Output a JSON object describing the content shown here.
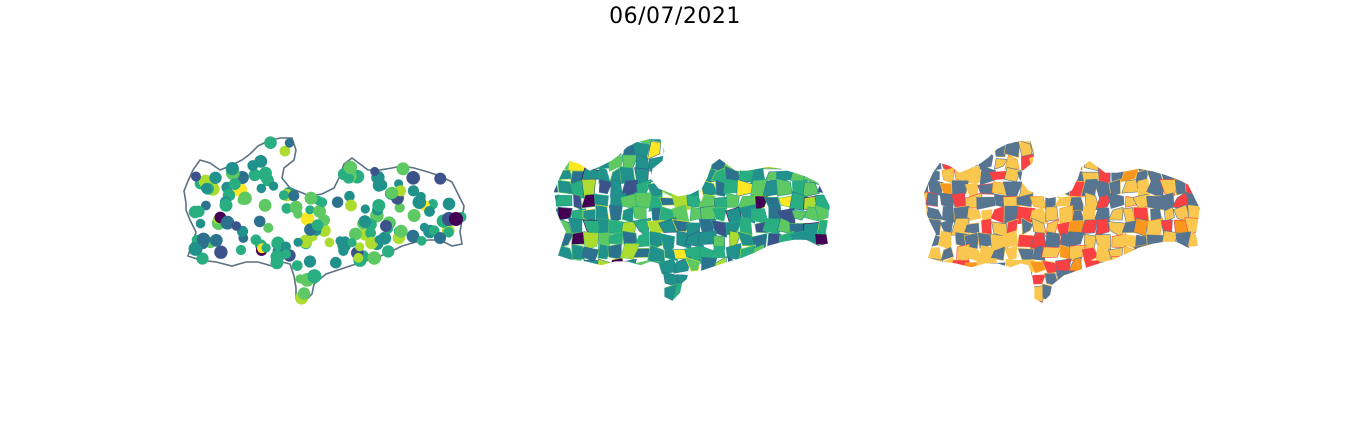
{
  "figure": {
    "title": "06/07/2021"
  },
  "colors": {
    "viridis": [
      "#440154",
      "#3b528b",
      "#2c728e",
      "#21918c",
      "#28ae80",
      "#5ec962",
      "#addc30",
      "#fde725"
    ],
    "outline": "#5b7184",
    "category": {
      "slate": "#577590",
      "yellow": "#f9c74f",
      "red": "#f94144",
      "orange": "#f8961e"
    }
  },
  "panels": [
    {
      "id": "bubble-map",
      "kind": "proportional-circles"
    },
    {
      "id": "choropleth-map",
      "kind": "continuous-choropleth",
      "palette": "viridis"
    },
    {
      "id": "category-map",
      "kind": "categorical-choropleth"
    }
  ]
}
